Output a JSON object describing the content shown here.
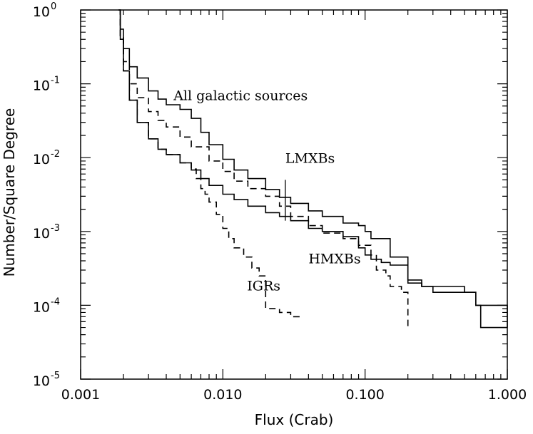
{
  "chart_data": {
    "type": "line",
    "title": "",
    "xlabel": "Flux (Crab)",
    "ylabel": "Number/Square Degree",
    "xscale": "log",
    "yscale": "log",
    "xlim": [
      0.001,
      1.0
    ],
    "ylim": [
      1e-05,
      1.0
    ],
    "x_ticks": [
      0.001,
      0.01,
      0.1,
      1.0
    ],
    "x_tick_labels": [
      "0.001",
      "0.010",
      "0.100",
      "1.000"
    ],
    "y_ticks": [
      1.0,
      0.1,
      0.01,
      0.001,
      0.0001,
      1e-05
    ],
    "y_tick_labels": [
      {
        "base": "10",
        "exp": "0"
      },
      {
        "base": "10",
        "exp": "-1"
      },
      {
        "base": "10",
        "exp": "-2"
      },
      {
        "base": "10",
        "exp": "-3"
      },
      {
        "base": "10",
        "exp": "-4"
      },
      {
        "base": "10",
        "exp": "-5"
      }
    ],
    "grid": false,
    "series": [
      {
        "name": "All galactic sources",
        "style": "solid",
        "x": [
          0.00185,
          0.0019,
          0.002,
          0.0022,
          0.0025,
          0.003,
          0.0035,
          0.004,
          0.005,
          0.006,
          0.007,
          0.008,
          0.01,
          0.012,
          0.015,
          0.02,
          0.025,
          0.03,
          0.04,
          0.05,
          0.07,
          0.09,
          0.1,
          0.11,
          0.15,
          0.2,
          0.25,
          0.3,
          0.5,
          0.6,
          0.65,
          1.0
        ],
        "y": [
          1.0,
          0.55,
          0.3,
          0.17,
          0.12,
          0.08,
          0.062,
          0.052,
          0.045,
          0.034,
          0.022,
          0.015,
          0.0095,
          0.0068,
          0.0052,
          0.0037,
          0.0029,
          0.0024,
          0.0019,
          0.0016,
          0.0013,
          0.0012,
          0.001,
          0.0008,
          0.00045,
          0.00022,
          0.00018,
          0.00015,
          0.00015,
          0.0001,
          5e-05,
          5e-05
        ]
      },
      {
        "name": "LMXBs",
        "style": "dashed",
        "x": [
          0.00185,
          0.0019,
          0.002,
          0.0022,
          0.0025,
          0.003,
          0.0035,
          0.004,
          0.005,
          0.006,
          0.008,
          0.01,
          0.012,
          0.015,
          0.02,
          0.025,
          0.03,
          0.04,
          0.05,
          0.07,
          0.09,
          0.11,
          0.12,
          0.14,
          0.15,
          0.18,
          0.2
        ],
        "y": [
          1.0,
          0.45,
          0.2,
          0.1,
          0.065,
          0.042,
          0.032,
          0.026,
          0.019,
          0.014,
          0.009,
          0.0065,
          0.0048,
          0.0038,
          0.003,
          0.0022,
          0.0016,
          0.0012,
          0.00095,
          0.0008,
          0.00065,
          0.00048,
          0.0003,
          0.00025,
          0.00018,
          0.00015,
          5e-05
        ]
      },
      {
        "name": "HMXBs",
        "style": "solid",
        "x": [
          0.00185,
          0.0019,
          0.002,
          0.0022,
          0.0025,
          0.003,
          0.0035,
          0.004,
          0.005,
          0.006,
          0.007,
          0.008,
          0.01,
          0.012,
          0.015,
          0.02,
          0.025,
          0.03,
          0.04,
          0.05,
          0.07,
          0.09,
          0.1,
          0.11,
          0.13,
          0.15,
          0.2,
          0.25,
          0.5,
          0.6,
          1.0
        ],
        "y": [
          1.0,
          0.4,
          0.15,
          0.06,
          0.03,
          0.018,
          0.013,
          0.011,
          0.0085,
          0.0068,
          0.0052,
          0.0042,
          0.0032,
          0.0027,
          0.0022,
          0.0018,
          0.0016,
          0.0014,
          0.0011,
          0.001,
          0.00085,
          0.0006,
          0.00048,
          0.00042,
          0.00038,
          0.00035,
          0.0002,
          0.00018,
          0.00015,
          0.0001,
          5e-05
        ]
      },
      {
        "name": "IGRs",
        "style": "dashed",
        "x": [
          0.00185,
          0.0019,
          0.002,
          0.0022,
          0.0025,
          0.003,
          0.0035,
          0.004,
          0.005,
          0.006,
          0.0065,
          0.007,
          0.0075,
          0.008,
          0.009,
          0.01,
          0.011,
          0.012,
          0.014,
          0.016,
          0.018,
          0.02,
          0.025,
          0.03,
          0.035
        ],
        "y": [
          1.0,
          0.4,
          0.15,
          0.06,
          0.03,
          0.018,
          0.013,
          0.011,
          0.0085,
          0.007,
          0.0052,
          0.0038,
          0.0032,
          0.0025,
          0.0017,
          0.0011,
          0.0008,
          0.0006,
          0.00045,
          0.00032,
          0.00025,
          9e-05,
          8e-05,
          7e-05,
          7e-05
        ]
      }
    ],
    "annotations": [
      {
        "text": "All galactic sources",
        "x": 0.0045,
        "y": 0.06
      },
      {
        "text": "LMXBs",
        "x": 0.0275,
        "y": 0.0085
      },
      {
        "text": "HMXBs",
        "x": 0.04,
        "y": 0.00037
      },
      {
        "text": "IGRs",
        "x": 0.0148,
        "y": 0.00016
      }
    ],
    "leader_lines": [
      {
        "from_label": "LMXBs",
        "x": 0.0275,
        "y1": 0.005,
        "y2": 0.0014
      }
    ]
  }
}
